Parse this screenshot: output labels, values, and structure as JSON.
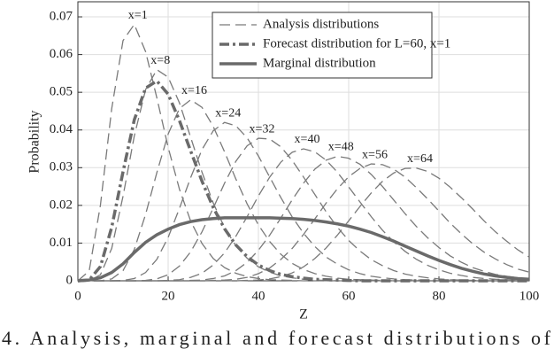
{
  "chart_data": {
    "type": "line",
    "y_label": "Probability",
    "x_label": "Z",
    "caption": "4. Analysis, marginal and forecast distributions of",
    "xlim": [
      0,
      100
    ],
    "xticks": [
      0,
      20,
      40,
      60,
      80,
      100
    ],
    "ylim": [
      0,
      0.074
    ],
    "yticks": [
      0,
      0.01,
      0.02,
      0.03,
      0.04,
      0.05,
      0.06,
      0.07
    ],
    "grid": true,
    "legend_position": "upper-right",
    "legend": [
      {
        "label": "Analysis distributions",
        "style": "dashed",
        "color": "#7a7a7a"
      },
      {
        "label": "Forecast distribution for L=60, x=1",
        "style": "dashdot",
        "color": "#6a6a6a"
      },
      {
        "label": "Marginal distribution",
        "style": "solid",
        "color": "#6a6a6a"
      }
    ],
    "x": [
      0,
      2.5,
      5,
      7.5,
      10,
      12.5,
      15,
      17.5,
      20,
      22.5,
      25,
      27.5,
      30,
      32.5,
      35,
      37.5,
      40,
      42.5,
      45,
      47.5,
      50,
      52.5,
      55,
      57.5,
      60,
      62.5,
      65,
      67.5,
      70,
      72.5,
      75,
      77.5,
      80,
      82.5,
      85,
      87.5,
      90,
      92.5,
      95,
      97.5,
      100
    ],
    "series": [
      {
        "name": "x=1",
        "style": "dashed",
        "color": "#7a7a7a",
        "values": [
          0,
          0.0026,
          0.0201,
          0.0457,
          0.0637,
          0.068,
          0.0608,
          0.0485,
          0.0354,
          0.0243,
          0.0158,
          0.0099,
          0.0059,
          0.0035,
          0.002,
          0.0011,
          0.0006,
          0.0003,
          0.0002,
          0.0001,
          0,
          0,
          0,
          0,
          0,
          0,
          0,
          0,
          0,
          0,
          0,
          0,
          0,
          0,
          0,
          0,
          0,
          0,
          0,
          0,
          0
        ]
      },
      {
        "name": "x=8",
        "style": "dashed",
        "color": "#7a7a7a",
        "values": [
          0,
          0,
          0.0016,
          0.0086,
          0.0224,
          0.0384,
          0.0507,
          0.056,
          0.054,
          0.0472,
          0.038,
          0.0288,
          0.0206,
          0.0141,
          0.0093,
          0.006,
          0.0037,
          0.0023,
          0.0013,
          0.0008,
          0.0004,
          0.0002,
          0.0001,
          0,
          0,
          0,
          0,
          0,
          0,
          0,
          0,
          0,
          0,
          0,
          0,
          0,
          0,
          0,
          0,
          0,
          0
        ]
      },
      {
        "name": "x=16",
        "style": "dashed",
        "color": "#7a7a7a",
        "values": [
          0,
          0,
          0,
          0.0005,
          0.0027,
          0.0083,
          0.0176,
          0.0287,
          0.0389,
          0.0457,
          0.048,
          0.046,
          0.0409,
          0.0342,
          0.027,
          0.0204,
          0.0148,
          0.0104,
          0.007,
          0.0046,
          0.003,
          0.0019,
          0.0012,
          0.0007,
          0.0004,
          0.0003,
          0.0002,
          0.0001,
          0,
          0,
          0,
          0,
          0,
          0,
          0,
          0,
          0,
          0,
          0,
          0,
          0
        ]
      },
      {
        "name": "x=24",
        "style": "dashed",
        "color": "#7a7a7a",
        "values": [
          0,
          0,
          0,
          0,
          0.0001,
          0.0006,
          0.0022,
          0.0057,
          0.0115,
          0.0192,
          0.0274,
          0.0348,
          0.0398,
          0.042,
          0.0411,
          0.0379,
          0.0331,
          0.0275,
          0.022,
          0.0169,
          0.0126,
          0.0091,
          0.0063,
          0.0044,
          0.0029,
          0.0019,
          0.0012,
          0.0008,
          0.0005,
          0.0003,
          0.0002,
          0.0001,
          0,
          0,
          0,
          0,
          0,
          0,
          0,
          0,
          0
        ]
      },
      {
        "name": "x=32",
        "style": "dashed",
        "color": "#7a7a7a",
        "values": [
          0,
          0,
          0,
          0,
          0,
          0,
          0.0001,
          0.0005,
          0.0016,
          0.0039,
          0.0077,
          0.013,
          0.0193,
          0.0259,
          0.0317,
          0.0358,
          0.0378,
          0.0376,
          0.0355,
          0.0319,
          0.0275,
          0.0229,
          0.0183,
          0.0142,
          0.0107,
          0.0079,
          0.0056,
          0.004,
          0.0027,
          0.0018,
          0.0012,
          0.0008,
          0.0005,
          0.0003,
          0.0002,
          0.0001,
          0,
          0,
          0,
          0,
          0
        ]
      },
      {
        "name": "x=40",
        "style": "dashed",
        "color": "#7a7a7a",
        "values": [
          0,
          0,
          0,
          0,
          0,
          0,
          0,
          0,
          0.0001,
          0.0003,
          0.0009,
          0.002,
          0.0042,
          0.0074,
          0.0118,
          0.017,
          0.0225,
          0.0275,
          0.0315,
          0.0341,
          0.035,
          0.0342,
          0.032,
          0.0288,
          0.0249,
          0.0209,
          0.017,
          0.0134,
          0.0103,
          0.0078,
          0.0057,
          0.0041,
          0.0029,
          0.002,
          0.0014,
          0.0009,
          0.0006,
          0.0004,
          0.0003,
          0.0002,
          0.0001
        ]
      },
      {
        "name": "x=48",
        "style": "dashed",
        "color": "#7a7a7a",
        "values": [
          0,
          0,
          0,
          0,
          0,
          0,
          0,
          0,
          0,
          0,
          0.0001,
          0.0002,
          0.0006,
          0.0013,
          0.0027,
          0.0049,
          0.0081,
          0.0121,
          0.0167,
          0.0215,
          0.0259,
          0.0296,
          0.032,
          0.033,
          0.0325,
          0.0309,
          0.0282,
          0.025,
          0.0214,
          0.0178,
          0.0144,
          0.0114,
          0.0088,
          0.0066,
          0.0049,
          0.0035,
          0.0025,
          0.0017,
          0.0012,
          0.0008,
          0.0005
        ]
      },
      {
        "name": "x=56",
        "style": "dashed",
        "color": "#7a7a7a",
        "values": [
          0,
          0,
          0,
          0,
          0,
          0,
          0,
          0,
          0,
          0,
          0,
          0,
          0.0001,
          0.0002,
          0.0004,
          0.0009,
          0.0019,
          0.0034,
          0.0057,
          0.0086,
          0.0123,
          0.0164,
          0.0206,
          0.0244,
          0.0276,
          0.0298,
          0.031,
          0.0308,
          0.0296,
          0.0275,
          0.0247,
          0.0217,
          0.0185,
          0.0153,
          0.0124,
          0.0098,
          0.0076,
          0.0058,
          0.0043,
          0.0031,
          0.0023
        ]
      },
      {
        "name": "x=64",
        "style": "dashed",
        "color": "#7a7a7a",
        "values": [
          0,
          0,
          0,
          0,
          0,
          0,
          0,
          0,
          0,
          0,
          0,
          0,
          0,
          0,
          0,
          0.0001,
          0.0002,
          0.0005,
          0.0011,
          0.0021,
          0.0037,
          0.0059,
          0.0087,
          0.0121,
          0.0159,
          0.0197,
          0.0233,
          0.0264,
          0.0286,
          0.0298,
          0.0299,
          0.029,
          0.0272,
          0.0248,
          0.022,
          0.019,
          0.0159,
          0.013,
          0.0105,
          0.0082,
          0.0063
        ]
      },
      {
        "style": "dashdot",
        "color": "#6a6a6a",
        "values": [
          0,
          0.0002,
          0.0038,
          0.0142,
          0.0289,
          0.0427,
          0.0511,
          0.053,
          0.0495,
          0.0425,
          0.0344,
          0.0264,
          0.0194,
          0.0138,
          0.0095,
          0.0064,
          0.0042,
          0.0027,
          0.0017,
          0.0011,
          0.0007,
          0.0004,
          0.0003,
          0.0002,
          0.0001,
          0,
          0,
          0,
          0,
          0,
          0,
          0,
          0,
          0,
          0,
          0,
          0,
          0,
          0,
          0,
          0
        ]
      },
      {
        "style": "solid",
        "color": "#6a6a6a",
        "values": [
          0,
          0.0002,
          0.0008,
          0.0022,
          0.0045,
          0.0075,
          0.0102,
          0.0122,
          0.0137,
          0.0149,
          0.0157,
          0.0162,
          0.0165,
          0.0167,
          0.0167,
          0.0167,
          0.0167,
          0.0167,
          0.0166,
          0.0165,
          0.0163,
          0.016,
          0.0156,
          0.0151,
          0.0145,
          0.0137,
          0.0128,
          0.0117,
          0.0105,
          0.0092,
          0.0079,
          0.0066,
          0.0054,
          0.0043,
          0.0033,
          0.0025,
          0.0018,
          0.0013,
          0.0009,
          0.0006,
          0.0004
        ]
      }
    ]
  }
}
